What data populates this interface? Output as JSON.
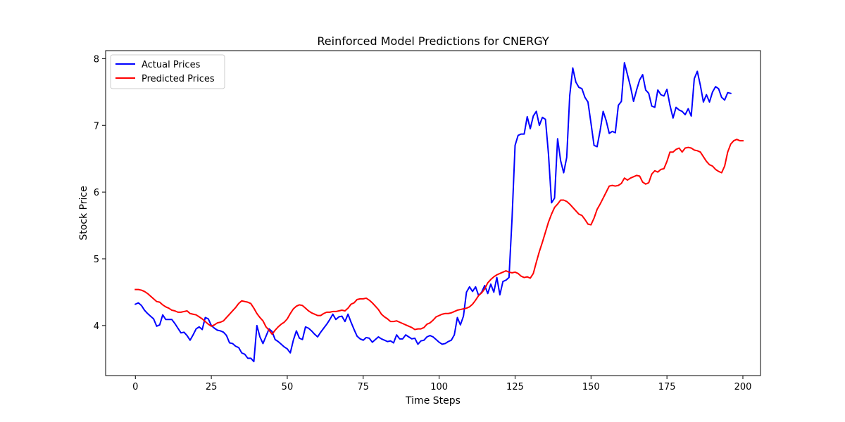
{
  "chart_data": {
    "type": "line",
    "title": "Reinforced Model Predictions for CNERGY",
    "xlabel": "Time Steps",
    "ylabel": "Stock Price",
    "xlim": [
      -9.8,
      205.8
    ],
    "ylim": [
      3.25,
      8.12
    ],
    "xticks": [
      0,
      25,
      50,
      75,
      100,
      125,
      150,
      175,
      200
    ],
    "yticks": [
      4,
      5,
      6,
      7,
      8
    ],
    "grid": false,
    "legend": "top-left",
    "series": [
      {
        "name": "Actual Prices",
        "color": "#0000ff",
        "values": [
          4.32,
          4.34,
          4.3,
          4.23,
          4.18,
          4.14,
          4.1,
          3.99,
          4.01,
          4.16,
          4.09,
          4.09,
          4.09,
          4.03,
          3.96,
          3.89,
          3.9,
          3.85,
          3.78,
          3.86,
          3.95,
          3.98,
          3.94,
          4.12,
          4.1,
          4.0,
          3.96,
          3.93,
          3.92,
          3.9,
          3.85,
          3.74,
          3.73,
          3.69,
          3.67,
          3.59,
          3.57,
          3.51,
          3.51,
          3.46,
          4.0,
          3.83,
          3.73,
          3.84,
          3.95,
          3.91,
          3.79,
          3.76,
          3.72,
          3.68,
          3.65,
          3.59,
          3.78,
          3.92,
          3.81,
          3.79,
          3.98,
          3.96,
          3.92,
          3.87,
          3.83,
          3.9,
          3.96,
          4.02,
          4.09,
          4.17,
          4.09,
          4.13,
          4.14,
          4.06,
          4.17,
          4.05,
          3.94,
          3.84,
          3.8,
          3.78,
          3.82,
          3.81,
          3.75,
          3.79,
          3.83,
          3.8,
          3.78,
          3.76,
          3.77,
          3.74,
          3.86,
          3.8,
          3.8,
          3.86,
          3.83,
          3.8,
          3.81,
          3.72,
          3.77,
          3.78,
          3.83,
          3.85,
          3.83,
          3.79,
          3.75,
          3.72,
          3.73,
          3.76,
          3.78,
          3.86,
          4.12,
          4.01,
          4.14,
          4.5,
          4.58,
          4.51,
          4.58,
          4.45,
          4.5,
          4.6,
          4.48,
          4.62,
          4.5,
          4.72,
          4.46,
          4.66,
          4.68,
          4.72,
          5.6,
          6.7,
          6.85,
          6.87,
          6.87,
          7.13,
          6.95,
          7.14,
          7.21,
          7.0,
          7.12,
          7.09,
          6.57,
          5.84,
          5.91,
          6.8,
          6.47,
          6.29,
          6.52,
          7.45,
          7.86,
          7.65,
          7.57,
          7.55,
          7.42,
          7.35,
          7.03,
          6.7,
          6.68,
          6.92,
          7.21,
          7.07,
          6.88,
          6.91,
          6.89,
          7.3,
          7.36,
          7.94,
          7.76,
          7.58,
          7.36,
          7.53,
          7.68,
          7.76,
          7.53,
          7.48,
          7.29,
          7.27,
          7.53,
          7.46,
          7.44,
          7.54,
          7.3,
          7.11,
          7.27,
          7.23,
          7.21,
          7.16,
          7.25,
          7.14,
          7.7,
          7.81,
          7.6,
          7.35,
          7.46,
          7.35,
          7.5,
          7.58,
          7.55,
          7.42,
          7.38,
          7.49,
          7.48
        ]
      },
      {
        "name": "Predicted Prices",
        "color": "#ff0000",
        "values": [
          4.54,
          4.54,
          4.53,
          4.51,
          4.48,
          4.44,
          4.4,
          4.36,
          4.35,
          4.31,
          4.28,
          4.26,
          4.23,
          4.22,
          4.2,
          4.2,
          4.21,
          4.22,
          4.18,
          4.17,
          4.16,
          4.13,
          4.1,
          4.06,
          4.02,
          3.99,
          4.01,
          4.04,
          4.05,
          4.07,
          4.12,
          4.17,
          4.22,
          4.27,
          4.33,
          4.37,
          4.36,
          4.35,
          4.33,
          4.26,
          4.18,
          4.12,
          4.07,
          3.98,
          3.93,
          3.87,
          3.93,
          3.98,
          4.02,
          4.05,
          4.1,
          4.18,
          4.25,
          4.29,
          4.31,
          4.3,
          4.26,
          4.22,
          4.19,
          4.17,
          4.15,
          4.15,
          4.18,
          4.2,
          4.2,
          4.21,
          4.21,
          4.22,
          4.23,
          4.22,
          4.26,
          4.32,
          4.34,
          4.39,
          4.4,
          4.4,
          4.41,
          4.38,
          4.34,
          4.29,
          4.24,
          4.17,
          4.13,
          4.1,
          4.06,
          4.06,
          4.07,
          4.05,
          4.03,
          4.01,
          3.99,
          3.97,
          3.94,
          3.95,
          3.95,
          3.97,
          4.02,
          4.04,
          4.08,
          4.13,
          4.15,
          4.17,
          4.18,
          4.18,
          4.19,
          4.21,
          4.23,
          4.24,
          4.25,
          4.26,
          4.28,
          4.32,
          4.38,
          4.45,
          4.49,
          4.55,
          4.64,
          4.69,
          4.73,
          4.76,
          4.78,
          4.8,
          4.82,
          4.8,
          4.79,
          4.8,
          4.78,
          4.74,
          4.72,
          4.73,
          4.71,
          4.78,
          4.95,
          5.11,
          5.25,
          5.4,
          5.55,
          5.67,
          5.77,
          5.82,
          5.88,
          5.88,
          5.86,
          5.82,
          5.77,
          5.72,
          5.67,
          5.65,
          5.59,
          5.52,
          5.51,
          5.61,
          5.74,
          5.82,
          5.91,
          6.0,
          6.09,
          6.1,
          6.09,
          6.1,
          6.13,
          6.21,
          6.18,
          6.21,
          6.23,
          6.25,
          6.24,
          6.15,
          6.12,
          6.14,
          6.27,
          6.32,
          6.3,
          6.34,
          6.35,
          6.46,
          6.6,
          6.6,
          6.64,
          6.66,
          6.6,
          6.66,
          6.67,
          6.66,
          6.63,
          6.62,
          6.6,
          6.53,
          6.46,
          6.41,
          6.39,
          6.34,
          6.31,
          6.29,
          6.39,
          6.6,
          6.72,
          6.77,
          6.79,
          6.77,
          6.77
        ]
      }
    ]
  }
}
